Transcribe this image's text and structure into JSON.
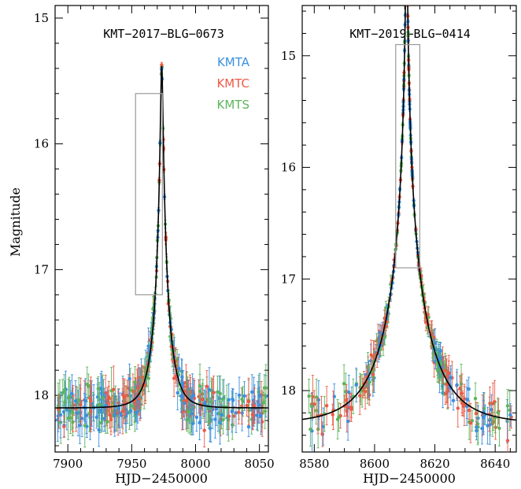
{
  "figure": {
    "ylabel": "Magnitude"
  },
  "chart_data": [
    {
      "type": "scatter",
      "title": "KMT−2017−BLG−0673",
      "xlabel": "HJD−2450000",
      "ylabel": "Magnitude",
      "xlim": [
        7890,
        8057
      ],
      "ylim": [
        18.45,
        14.9
      ],
      "y_inverted": true,
      "xticks": [
        {
          "value": 7900,
          "label": "7900"
        },
        {
          "value": 7950,
          "label": "7950"
        },
        {
          "value": 8000,
          "label": "8000"
        },
        {
          "value": 8050,
          "label": "8050"
        }
      ],
      "yticks": [
        {
          "value": 15,
          "label": "15"
        },
        {
          "value": 16,
          "label": "16"
        },
        {
          "value": 17,
          "label": "17"
        },
        {
          "value": 18,
          "label": "18"
        }
      ],
      "legend_position": "top-right",
      "series": [
        {
          "name": "KMTA",
          "color": "#3b8fe0"
        },
        {
          "name": "KMTC",
          "color": "#ec5a45"
        },
        {
          "name": "KMTS",
          "color": "#5cb55c"
        }
      ],
      "model": {
        "t0": 7973.5,
        "u0": 0.082,
        "tE": 11.0,
        "baseline": 18.1
      },
      "zoom_box": {
        "x": [
          7953,
          7974
        ],
        "y": [
          15.6,
          17.2
        ]
      }
    },
    {
      "type": "scatter",
      "title": "KMT−2019−BLG−0414",
      "xlabel": "HJD−2450000",
      "ylabel": "",
      "xlim": [
        8576,
        8647
      ],
      "ylim": [
        18.55,
        14.55
      ],
      "y_inverted": true,
      "xticks": [
        {
          "value": 8580,
          "label": "8580"
        },
        {
          "value": 8600,
          "label": "8600"
        },
        {
          "value": 8620,
          "label": "8620"
        },
        {
          "value": 8640,
          "label": "8640"
        }
      ],
      "yticks": [
        {
          "value": 15,
          "label": "15"
        },
        {
          "value": 16,
          "label": "16"
        },
        {
          "value": 17,
          "label": "17"
        },
        {
          "value": 18,
          "label": "18"
        }
      ],
      "series": [
        {
          "name": "KMTA",
          "color": "#3b8fe0"
        },
        {
          "name": "KMTC",
          "color": "#ec5a45"
        },
        {
          "name": "KMTS",
          "color": "#5cb55c"
        }
      ],
      "model": {
        "t0": 8610.6,
        "u0": 0.018,
        "tE": 15.0,
        "baseline": 18.3
      },
      "zoom_box": {
        "x": [
          8607,
          8615
        ],
        "y": [
          14.9,
          16.9
        ]
      }
    }
  ]
}
